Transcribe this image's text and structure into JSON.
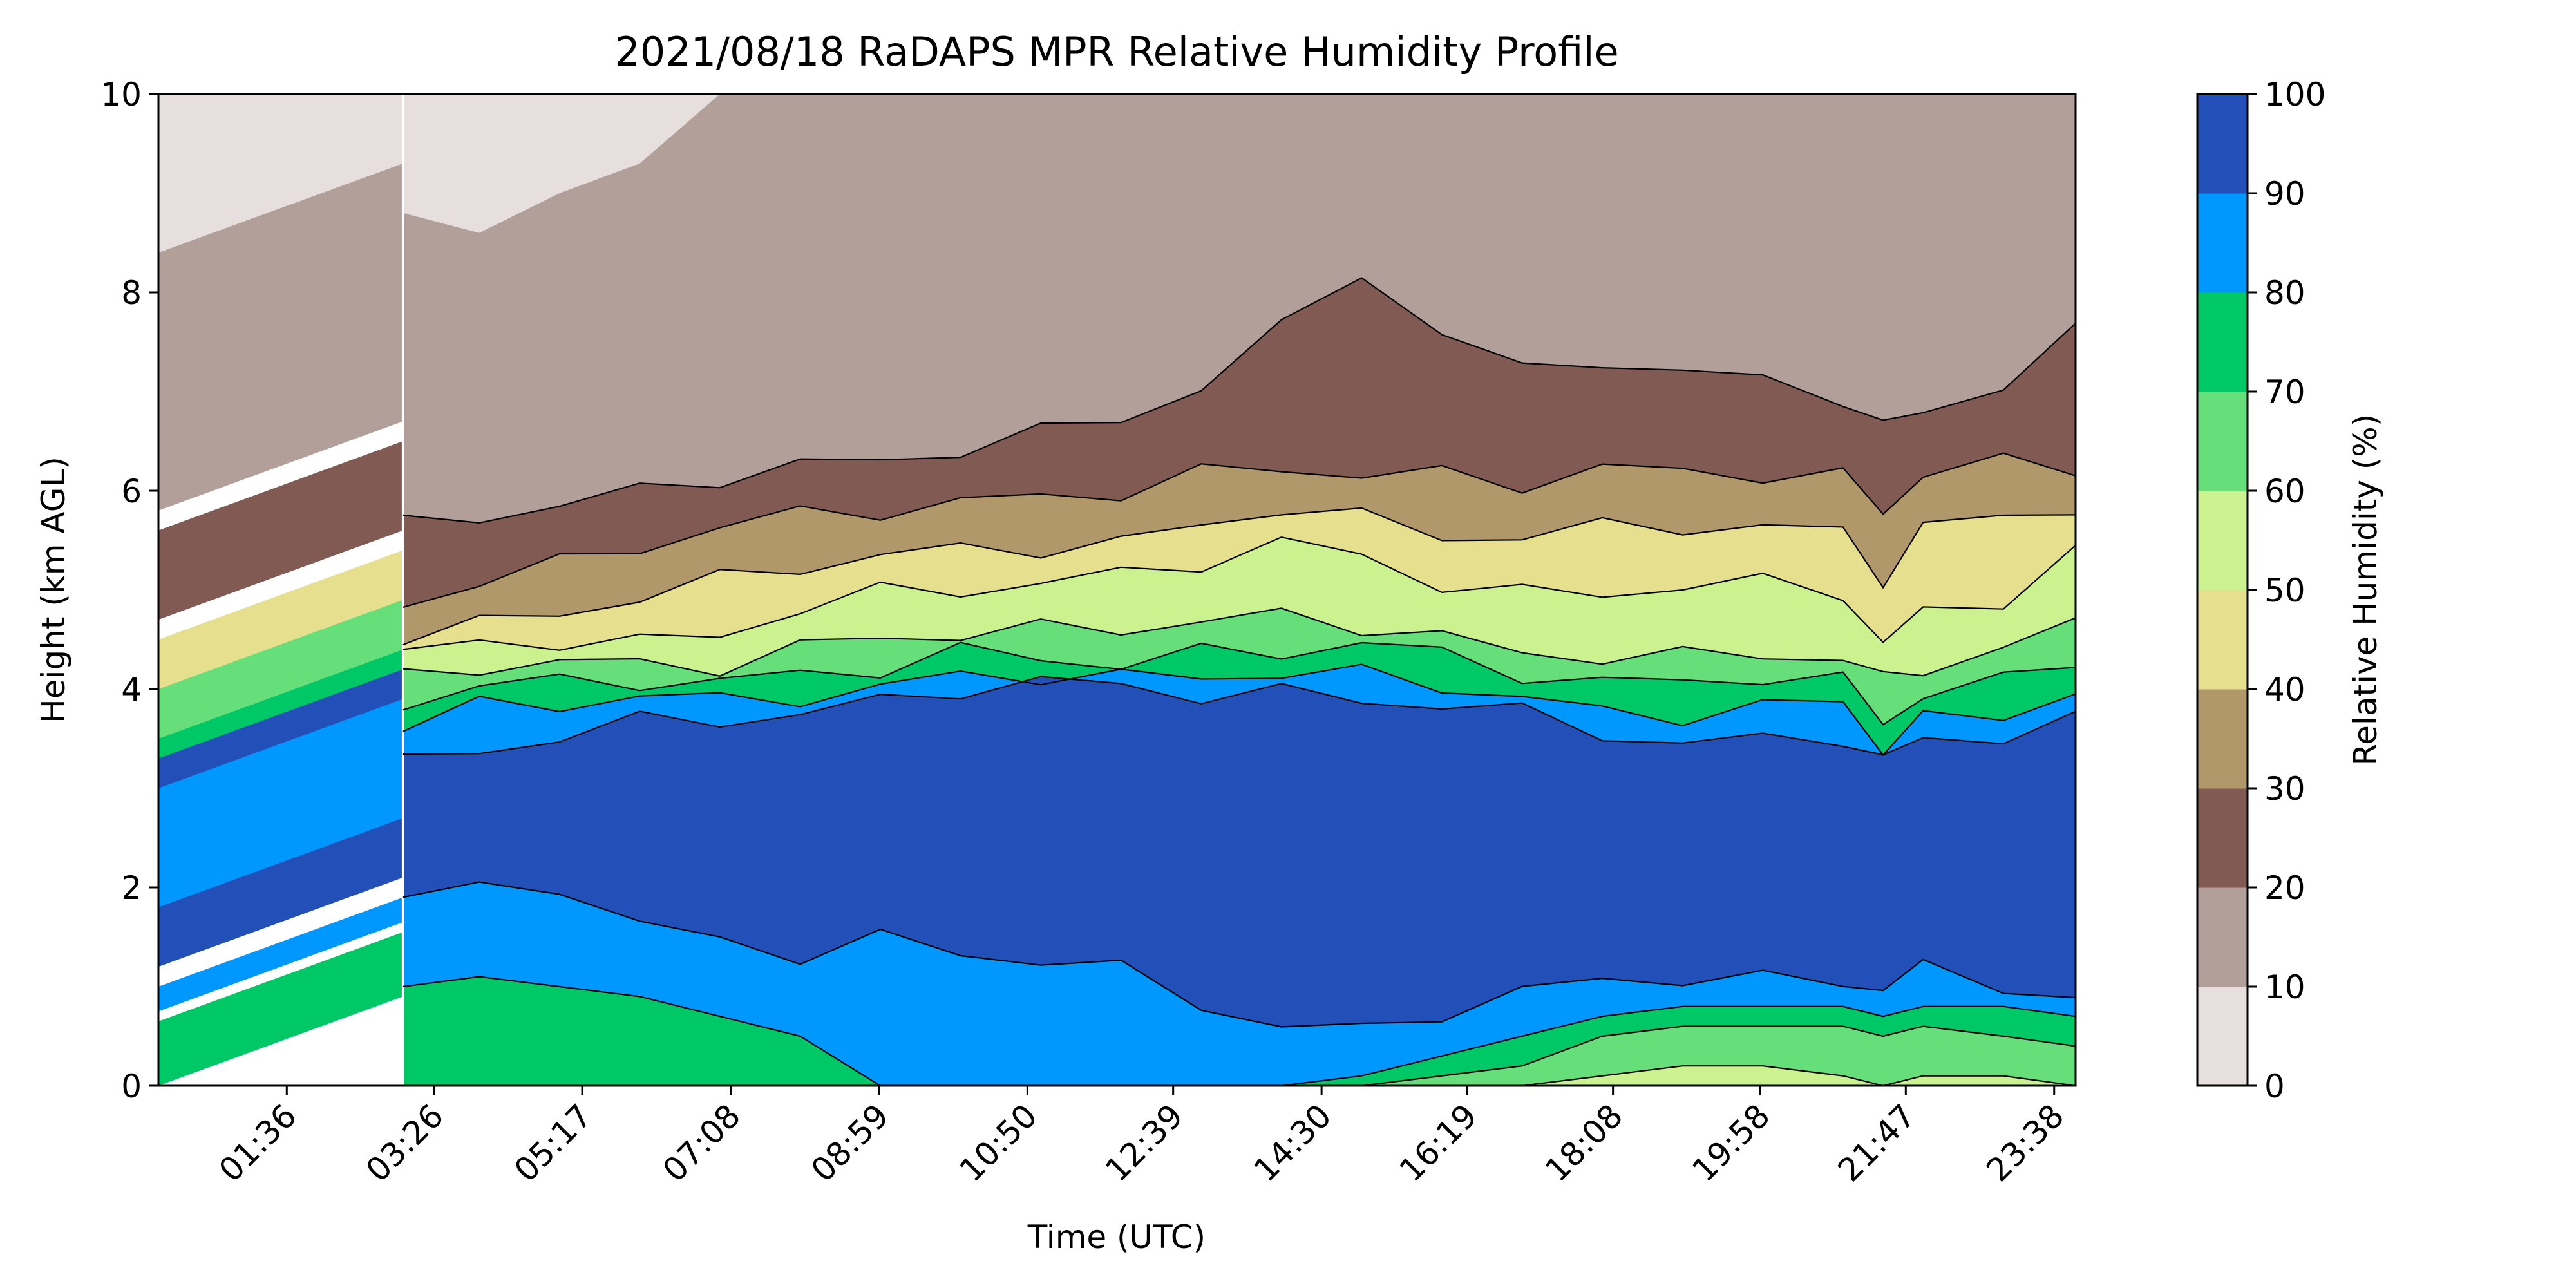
{
  "chart_data": {
    "type": "contour",
    "title": "2021/08/18 RaDAPS MPR Relative Humidity Profile",
    "xlabel": "Time (UTC)",
    "ylabel": "Height (km AGL)",
    "colorbar_label": "Relative Humidity (%)",
    "x_range_hours": [
      0.0,
      23.9
    ],
    "x_ticks": [
      {
        "label": "01:36",
        "hour": 1.6
      },
      {
        "label": "03:26",
        "hour": 3.433
      },
      {
        "label": "05:17",
        "hour": 5.283
      },
      {
        "label": "07:08",
        "hour": 7.133
      },
      {
        "label": "08:59",
        "hour": 8.983
      },
      {
        "label": "10:50",
        "hour": 10.833
      },
      {
        "label": "12:39",
        "hour": 12.65
      },
      {
        "label": "14:30",
        "hour": 14.5
      },
      {
        "label": "16:19",
        "hour": 16.317
      },
      {
        "label": "18:08",
        "hour": 18.133
      },
      {
        "label": "19:58",
        "hour": 19.967
      },
      {
        "label": "21:47",
        "hour": 21.783
      },
      {
        "label": "23:38",
        "hour": 23.633
      }
    ],
    "y_range": [
      0,
      10
    ],
    "y_ticks": [
      "0",
      "2",
      "4",
      "6",
      "8",
      "10"
    ],
    "levels": [
      0,
      10,
      20,
      30,
      40,
      50,
      60,
      70,
      80,
      90,
      100
    ],
    "level_labels": [
      "0",
      "10",
      "20",
      "30",
      "40",
      "50",
      "60",
      "70",
      "80",
      "90",
      "100"
    ],
    "level_colors": [
      "#e6dfdd",
      "#b39f99",
      "#805a53",
      "#b1986a",
      "#e5df8e",
      "#ccf290",
      "#66df7a",
      "#00c866",
      "#0098ff",
      "#2350b8"
    ],
    "data_gap_hours": [
      0.0,
      3.05
    ],
    "time_hours": [
      3.05,
      4.0,
      5.0,
      6.0,
      7.0,
      8.0,
      9.0,
      10.0,
      11.0,
      12.0,
      13.0,
      14.0,
      15.0,
      16.0,
      17.0,
      18.0,
      19.0,
      20.0,
      21.0,
      21.5,
      22.0,
      23.0,
      23.9
    ],
    "contour_heights_km": {
      "10": [
        8.8,
        8.6,
        9.0,
        9.3,
        10.0,
        10.0,
        10.0,
        10.0,
        10.0,
        10.0,
        10.0,
        10.0,
        10.0,
        10.0,
        10.0,
        10.0,
        10.0,
        10.0,
        10.0,
        10.0,
        10.0,
        10.0,
        10.0
      ],
      "20": [
        5.6,
        5.8,
        5.9,
        6.0,
        6.1,
        6.2,
        6.3,
        6.5,
        6.6,
        6.7,
        7.0,
        7.6,
        8.3,
        7.6,
        7.2,
        7.3,
        7.1,
        7.2,
        7.0,
        6.6,
        6.8,
        7.0,
        7.6
      ],
      "30": [
        4.8,
        5.1,
        5.3,
        5.5,
        5.6,
        5.7,
        5.8,
        5.9,
        6.0,
        6.0,
        6.1,
        6.2,
        6.2,
        6.2,
        6.1,
        6.2,
        6.1,
        6.2,
        6.2,
        5.8,
        6.2,
        6.2,
        6.2
      ],
      "40": [
        4.5,
        4.6,
        4.8,
        5.0,
        5.1,
        5.2,
        5.3,
        5.4,
        5.5,
        5.5,
        5.6,
        5.8,
        5.7,
        5.6,
        5.6,
        5.6,
        5.6,
        5.6,
        5.6,
        5.2,
        5.6,
        5.7,
        5.8
      ],
      "50": [
        4.3,
        4.4,
        4.5,
        4.5,
        4.6,
        4.8,
        4.9,
        5.0,
        5.1,
        5.2,
        5.3,
        5.4,
        5.3,
        5.1,
        5.0,
        5.0,
        5.0,
        5.0,
        5.0,
        4.5,
        4.8,
        4.9,
        5.3
      ],
      "60": [
        4.1,
        4.2,
        4.2,
        4.3,
        4.3,
        4.4,
        4.5,
        4.5,
        4.6,
        4.7,
        4.7,
        4.7,
        4.6,
        4.5,
        4.4,
        4.4,
        4.3,
        4.3,
        4.3,
        4.1,
        4.3,
        4.4,
        4.6
      ],
      "70": [
        3.9,
        4.0,
        4.0,
        4.1,
        4.1,
        4.2,
        4.2,
        4.3,
        4.3,
        4.3,
        4.4,
        4.4,
        4.4,
        4.3,
        4.2,
        4.1,
        4.1,
        4.1,
        4.0,
        3.7,
        4.0,
        4.1,
        4.3
      ],
      "80": [
        3.7,
        3.8,
        3.8,
        3.9,
        3.9,
        4.0,
        4.0,
        4.1,
        4.1,
        4.1,
        4.2,
        4.2,
        4.1,
        4.0,
        3.9,
        3.8,
        3.8,
        3.8,
        3.8,
        3.4,
        3.7,
        3.8,
        4.0
      ],
      "90": [
        3.3,
        3.4,
        3.5,
        3.6,
        3.7,
        3.8,
        3.9,
        4.0,
        4.0,
        4.0,
        4.0,
        4.0,
        3.9,
        3.8,
        3.7,
        3.6,
        3.5,
        3.5,
        3.5,
        3.2,
        3.5,
        3.6,
        3.7
      ]
    },
    "low_band_km": {
      "90_bottom": [
        1.9,
        2.0,
        2.1,
        1.6,
        1.4,
        1.3,
        1.5,
        1.4,
        1.3,
        1.1,
        0.8,
        0.6,
        0.6,
        0.8,
        0.9,
        1.0,
        1.1,
        1.1,
        1.1,
        1.0,
        1.1,
        1.0,
        0.9
      ],
      "80_bottom": [
        1.0,
        1.1,
        1.0,
        0.9,
        0.7,
        0.5,
        0.0,
        0.0,
        0.0,
        0.0,
        0.0,
        0.0,
        0.1,
        0.3,
        0.5,
        0.7,
        0.8,
        0.8,
        0.8,
        0.7,
        0.8,
        0.8,
        0.7
      ],
      "70_bottom": [
        0.0,
        0.0,
        0.0,
        0.0,
        0.0,
        0.0,
        0.0,
        0.0,
        0.0,
        0.0,
        0.0,
        0.0,
        0.0,
        0.1,
        0.2,
        0.5,
        0.6,
        0.6,
        0.6,
        0.5,
        0.6,
        0.5,
        0.4
      ],
      "60_bottom": [
        0.0,
        0.0,
        0.0,
        0.0,
        0.0,
        0.0,
        0.0,
        0.0,
        0.0,
        0.0,
        0.0,
        0.0,
        0.0,
        0.0,
        0.0,
        0.1,
        0.2,
        0.2,
        0.1,
        0.0,
        0.1,
        0.1,
        0.0
      ]
    }
  }
}
